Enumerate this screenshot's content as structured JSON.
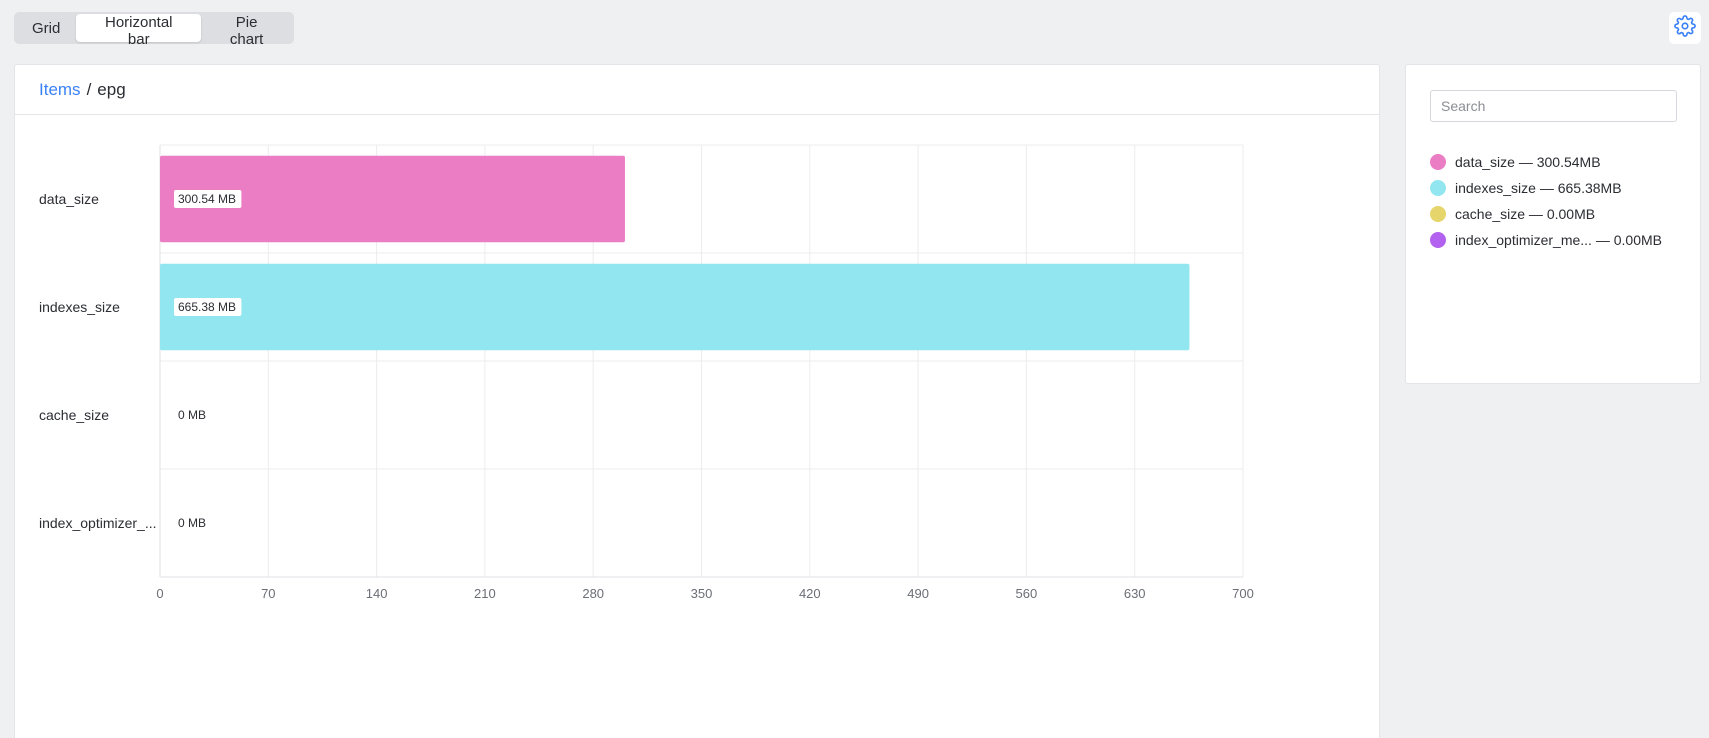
{
  "view_tabs": [
    "Grid",
    "Horizontal bar",
    "Pie chart"
  ],
  "active_view": "Horizontal bar",
  "settings_icon": "gear-icon",
  "breadcrumb": {
    "root": "Items",
    "separator": "/",
    "current": "epg"
  },
  "search": {
    "placeholder": "Search",
    "value": ""
  },
  "legend": [
    {
      "label": "data_size — 300.54MB",
      "color": "#eb7dc4"
    },
    {
      "label": "indexes_size — 665.38MB",
      "color": "#92e6ef"
    },
    {
      "label": "cache_size — 0.00MB",
      "color": "#e6d56a"
    },
    {
      "label": "index_optimizer_me... — 0.00MB",
      "color": "#b262ef"
    }
  ],
  "chart_data": {
    "type": "bar",
    "orientation": "horizontal",
    "categories": [
      "data_size",
      "indexes_size",
      "cache_size",
      "index_optimizer_..."
    ],
    "values": [
      300.54,
      665.38,
      0,
      0
    ],
    "value_labels": [
      "300.54 MB",
      "665.38 MB",
      "0 MB",
      "0 MB"
    ],
    "colors": [
      "#eb7dc4",
      "#92e6ef",
      "#e6d56a",
      "#b262ef"
    ],
    "xlim": [
      0,
      700
    ],
    "xticks": [
      0,
      70,
      140,
      210,
      280,
      350,
      420,
      490,
      560,
      630,
      700
    ],
    "grid": true,
    "legend_position": "right"
  }
}
